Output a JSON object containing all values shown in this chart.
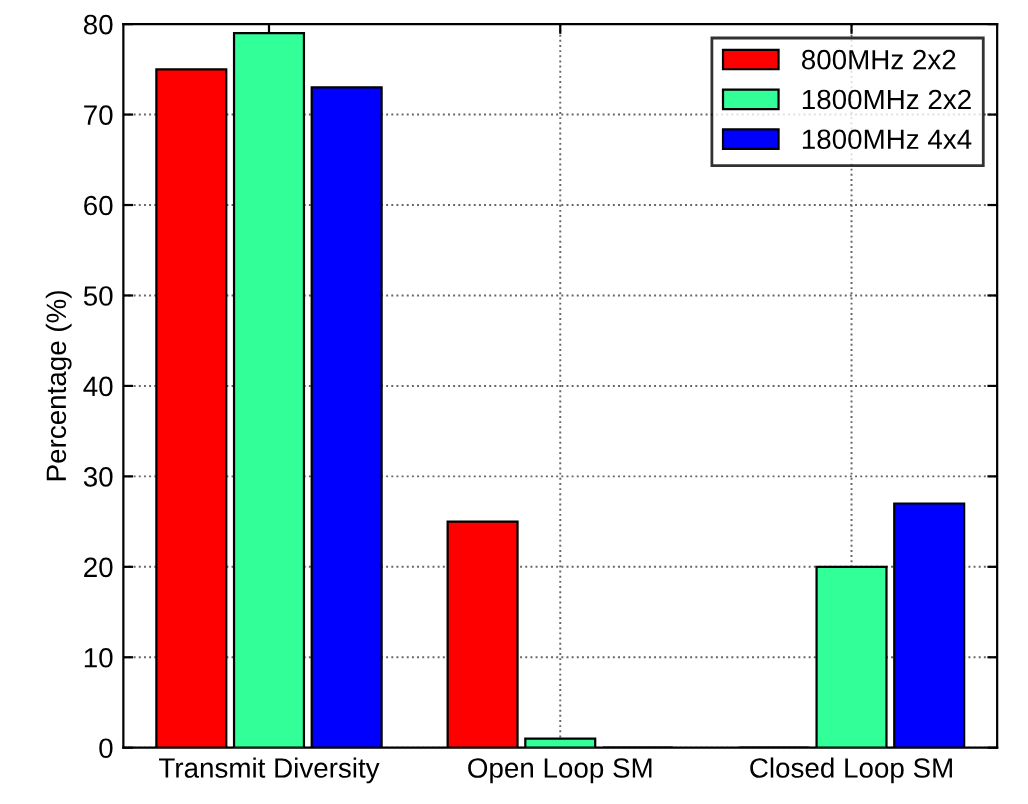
{
  "chart_data": {
    "type": "bar",
    "ylabel": "Percentage (%)",
    "categories": [
      "Transmit Diversity",
      "Open Loop SM",
      "Closed Loop SM"
    ],
    "series": [
      {
        "name": "800MHz 2x2",
        "color": "#ff0000",
        "values": [
          75,
          25,
          0
        ]
      },
      {
        "name": "1800MHz 2x2",
        "color": "#33ff99",
        "values": [
          79,
          1,
          20
        ]
      },
      {
        "name": "1800MHz 4x4",
        "color": "#0000ff",
        "values": [
          73,
          0,
          27
        ]
      }
    ],
    "ylim": [
      0,
      80
    ],
    "yticks": [
      0,
      10,
      20,
      30,
      40,
      50,
      60,
      70,
      80
    ],
    "grid": true,
    "legend": "top right"
  }
}
